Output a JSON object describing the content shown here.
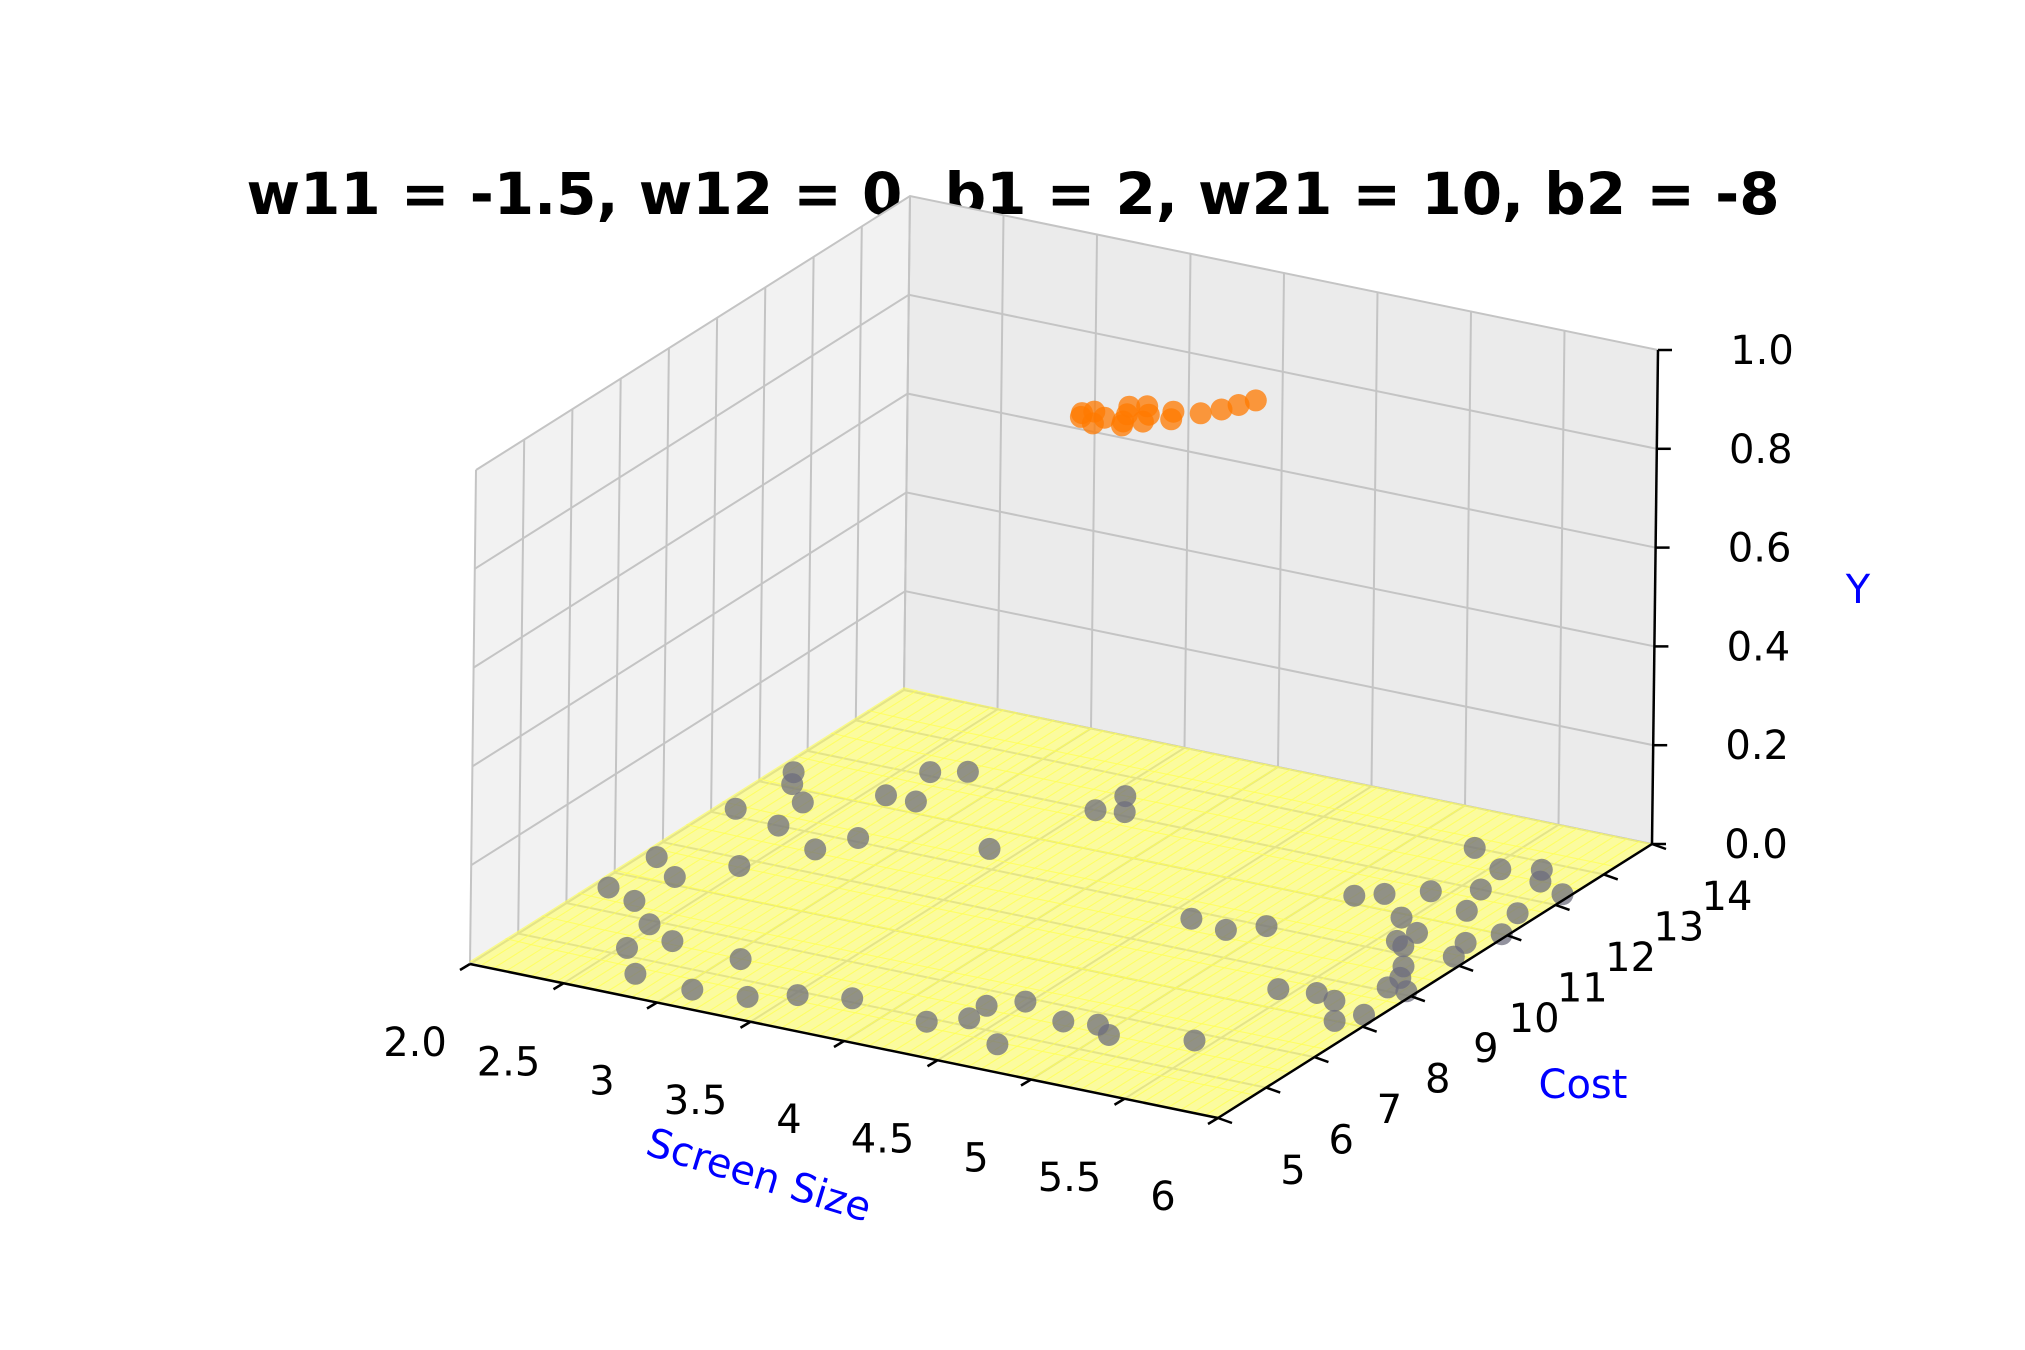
{
  "chart_data": {
    "type": "surface3d-scatter",
    "title": "w11 = -1.5, w12 = 0, b1 = 2, w21 = 10, b2 = -8",
    "xlabel": "Screen Size",
    "ylabel": "Cost",
    "zlabel": "Y",
    "xlim": [
      2.0,
      6.0
    ],
    "ylim": [
      5,
      14
    ],
    "zlim": [
      0.0,
      1.0
    ],
    "x_ticks": [
      "2.0",
      "2.5",
      "3",
      "3.5",
      "4",
      "4.5",
      "5",
      "5.5",
      "6"
    ],
    "y_ticks": [
      "5",
      "6",
      "7",
      "8",
      "9",
      "10",
      "11",
      "12",
      "13",
      "14"
    ],
    "z_ticks": [
      "0.0",
      "0.2",
      "0.4",
      "0.6",
      "0.8",
      "1.0"
    ],
    "grid": true,
    "colors": {
      "surface": "#ffff55",
      "class0": "#6e6e7e",
      "class1": "#ff7a00",
      "axis_label": "#0000ff"
    },
    "surface": {
      "formula": "Y = sigmoid(w21 * sigmoid(w11*x + w12*y + b1) + b2)",
      "w11": -1.5,
      "w12": 0,
      "b1": 2,
      "w21": 10,
      "b2": -8
    },
    "series": [
      {
        "label_value": 0,
        "points": [
          [
            2.07,
            7.6
          ],
          [
            2.26,
            7.4
          ],
          [
            2.53,
            6.2
          ],
          [
            2.73,
            5.6
          ],
          [
            2.67,
            6.6
          ],
          [
            2.07,
            8.6
          ],
          [
            2.47,
            6.9
          ],
          [
            2.27,
            8.2
          ],
          [
            3.06,
            6.5
          ],
          [
            2.08,
            10.2
          ],
          [
            2.08,
            11.4
          ],
          [
            2.31,
            10.7
          ],
          [
            2.36,
            10.0
          ],
          [
            2.6,
            11.3
          ],
          [
            2.76,
            11.3
          ],
          [
            2.78,
            12.3
          ],
          [
            2.63,
            12.1
          ],
          [
            2.15,
            11.1
          ],
          [
            2.46,
            8.8
          ],
          [
            2.66,
            9.6
          ],
          [
            2.76,
            10.1
          ],
          [
            3.36,
            10.5
          ],
          [
            3.54,
            12.0
          ],
          [
            3.57,
            12.5
          ],
          [
            3.67,
            12.1
          ],
          [
            3.06,
            5.5
          ],
          [
            3.33,
            5.6
          ],
          [
            3.52,
            5.9
          ],
          [
            3.76,
            6.1
          ],
          [
            4.21,
            5.9
          ],
          [
            4.36,
            6.2
          ],
          [
            4.35,
            6.6
          ],
          [
            4.48,
            6.9
          ],
          [
            4.76,
            6.6
          ],
          [
            4.92,
            6.7
          ],
          [
            5.03,
            6.5
          ],
          [
            4.64,
            5.7
          ],
          [
            5.41,
            6.8
          ],
          [
            4.62,
            9.8
          ],
          [
            4.83,
            9.7
          ],
          [
            4.97,
            10.0
          ],
          [
            5.13,
            11.2
          ],
          [
            5.24,
            11.4
          ],
          [
            5.41,
            11.7
          ],
          [
            5.59,
            10.3
          ],
          [
            5.65,
            10.2
          ],
          [
            5.78,
            9.7
          ],
          [
            5.84,
            9.4
          ],
          [
            5.42,
            8.5
          ],
          [
            5.6,
            8.6
          ],
          [
            5.72,
            8.5
          ],
          [
            5.93,
            8.3
          ],
          [
            5.85,
            9.1
          ],
          [
            5.92,
            10.2
          ],
          [
            5.97,
            11.0
          ],
          [
            5.68,
            11.4
          ],
          [
            5.6,
            12.0
          ],
          [
            5.79,
            12.5
          ],
          [
            5.96,
            12.3
          ],
          [
            5.88,
            10.6
          ],
          [
            5.46,
            10.9
          ],
          [
            5.62,
            10.6
          ],
          [
            5.85,
            8.0
          ],
          [
            5.95,
            9.1
          ],
          [
            5.55,
            12.6
          ],
          [
            5.31,
            13.0
          ],
          [
            5.72,
            12.8
          ],
          [
            5.9,
            11.6
          ]
        ]
      },
      {
        "label_value": 1,
        "points": [
          [
            4.1,
            9.4
          ],
          [
            4.2,
            9.5
          ],
          [
            4.3,
            9.5
          ],
          [
            4.38,
            9.6
          ],
          [
            4.12,
            9.6
          ],
          [
            4.27,
            9.7
          ],
          [
            4.36,
            9.8
          ],
          [
            4.48,
            9.8
          ],
          [
            4.23,
            9.9
          ],
          [
            4.56,
            10.1
          ],
          [
            4.62,
            10.3
          ],
          [
            4.66,
            10.5
          ],
          [
            4.7,
            10.7
          ],
          [
            4.19,
            9.3
          ],
          [
            4.08,
            9.5
          ],
          [
            4.32,
            9.4
          ],
          [
            4.44,
            10.0
          ],
          [
            4.3,
            10.0
          ]
        ]
      }
    ]
  }
}
